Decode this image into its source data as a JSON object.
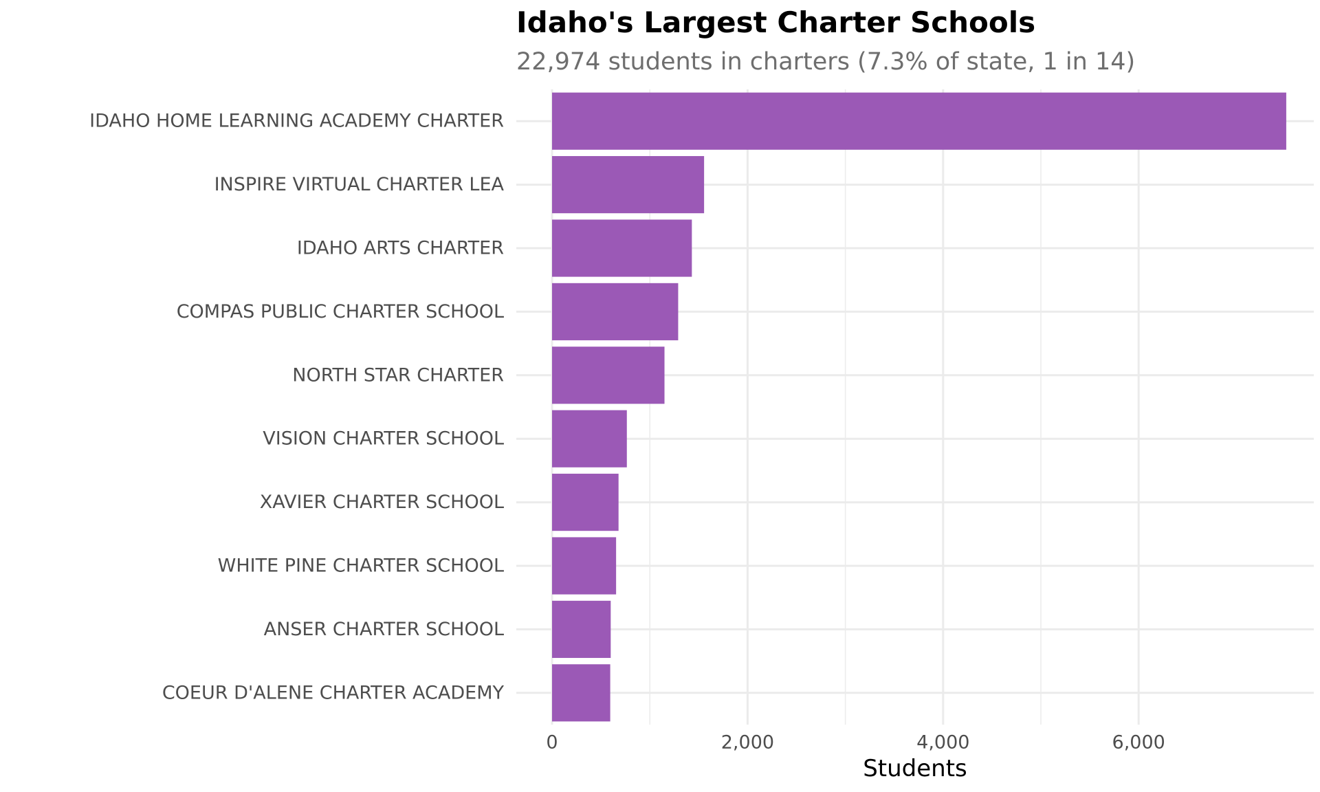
{
  "colors": {
    "bar": "#9b59b6",
    "grid": "#ebebeb",
    "tick_text": "#4d4d4d",
    "axis_title": "#000000",
    "subtitle": "#6e6e6e"
  },
  "chart_data": {
    "type": "bar",
    "orientation": "horizontal",
    "title": "Idaho's Largest Charter Schools",
    "subtitle": "22,974 students in charters (7.3% of state, 1 in 14)",
    "xlabel": "Students",
    "ylabel": "",
    "xlim": [
      0,
      7860
    ],
    "x_ticks": [
      0,
      2000,
      4000,
      6000
    ],
    "x_tick_labels": [
      "0",
      "2,000",
      "4,000",
      "6,000"
    ],
    "grid": true,
    "legend": "none",
    "categories": [
      "IDAHO HOME LEARNING ACADEMY CHARTER",
      "INSPIRE VIRTUAL CHARTER LEA",
      "IDAHO ARTS CHARTER",
      "COMPAS PUBLIC CHARTER SCHOOL",
      "NORTH STAR CHARTER",
      "VISION CHARTER SCHOOL",
      "XAVIER CHARTER SCHOOL",
      "WHITE PINE CHARTER SCHOOL",
      "ANSER CHARTER SCHOOL",
      "COEUR D'ALENE CHARTER ACADEMY"
    ],
    "values": [
      7510,
      1555,
      1430,
      1290,
      1150,
      765,
      680,
      655,
      600,
      595
    ]
  }
}
